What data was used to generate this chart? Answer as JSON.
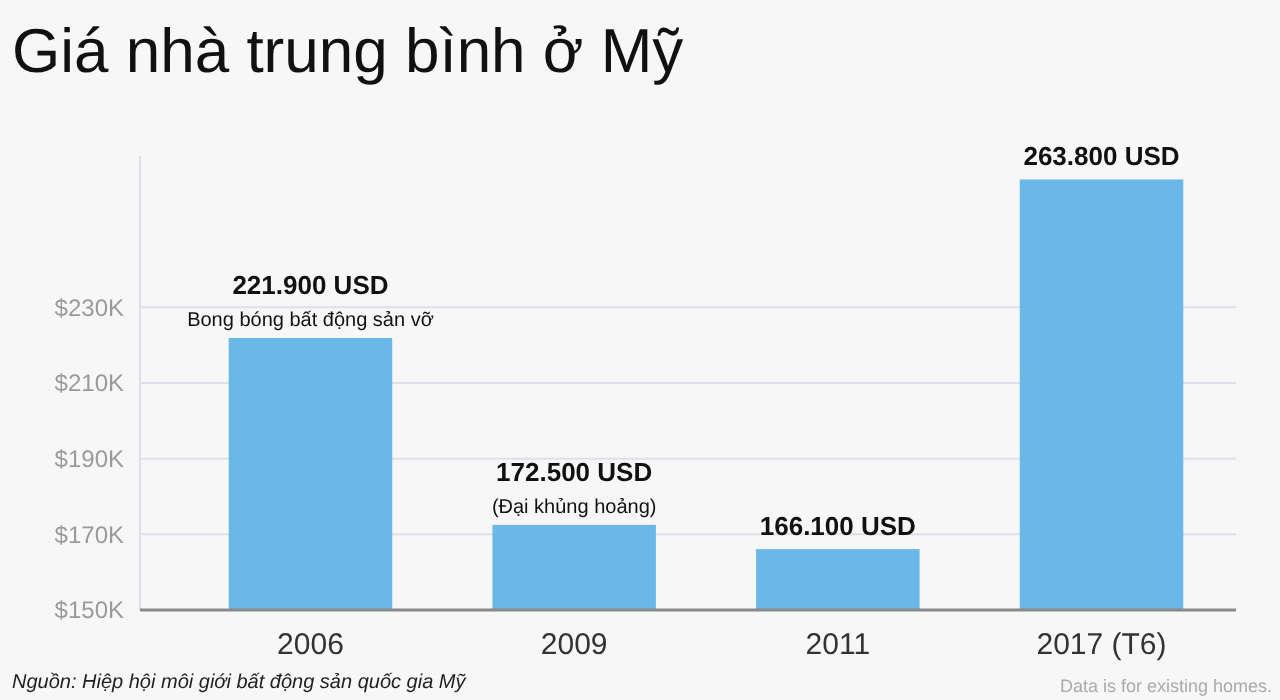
{
  "chart_data": {
    "type": "bar",
    "title": "Giá nhà trung bình ở Mỹ",
    "categories": [
      "2006",
      "2009",
      "2011",
      "2017 (T6)"
    ],
    "values": [
      221900,
      172500,
      166100,
      263800
    ],
    "color": "#6ab8e8",
    "value_labels": [
      "221.900 USD",
      "172.500 USD",
      "166.100 USD",
      "263.800 USD"
    ],
    "ylim": [
      150000,
      270000
    ],
    "yticks": [
      {
        "value": 150000,
        "label": "$150K"
      },
      {
        "value": 170000,
        "label": "$170K"
      },
      {
        "value": 190000,
        "label": "$190K"
      },
      {
        "value": 210000,
        "label": "$210K"
      },
      {
        "value": 230000,
        "label": "$230K"
      }
    ],
    "grid": "y",
    "annotations": [
      {
        "text": "Bong bóng bất động sản vỡ",
        "x": "2006",
        "y": 221900
      },
      {
        "text": "(Đại khủng hoảng)",
        "x": "2009",
        "y": 172500
      },
      "Nguồn: Hiệp hội môi giới bất động sản quốc gia Mỹ",
      "Data is for existing homes."
    ]
  }
}
